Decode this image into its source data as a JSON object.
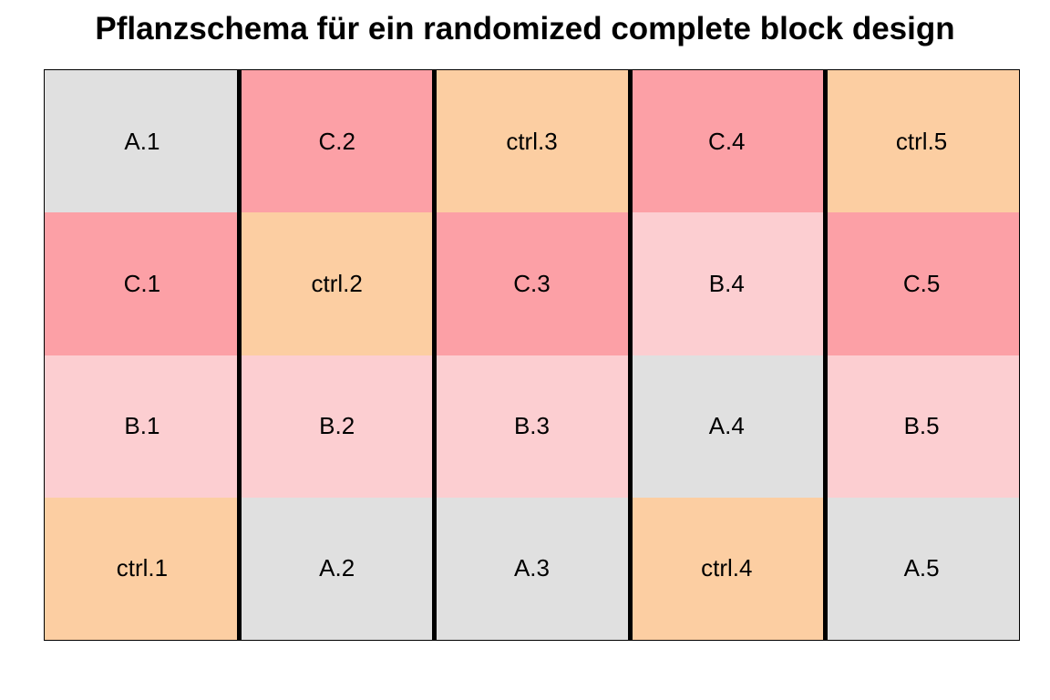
{
  "title": "Pflanzschema für ein randomized complete block design",
  "colors": {
    "A": "#e0e0e0",
    "B": "#fcced1",
    "C": "#fca0a6",
    "ctrl": "#fccea2",
    "divider": "#000000"
  },
  "rows": [
    [
      {
        "label": "A.1",
        "group": "A"
      },
      {
        "label": "C.2",
        "group": "C"
      },
      {
        "label": "ctrl.3",
        "group": "ctrl"
      },
      {
        "label": "C.4",
        "group": "C"
      },
      {
        "label": "ctrl.5",
        "group": "ctrl"
      }
    ],
    [
      {
        "label": "C.1",
        "group": "C"
      },
      {
        "label": "ctrl.2",
        "group": "ctrl"
      },
      {
        "label": "C.3",
        "group": "C"
      },
      {
        "label": "B.4",
        "group": "B"
      },
      {
        "label": "C.5",
        "group": "C"
      }
    ],
    [
      {
        "label": "B.1",
        "group": "B"
      },
      {
        "label": "B.2",
        "group": "B"
      },
      {
        "label": "B.3",
        "group": "B"
      },
      {
        "label": "A.4",
        "group": "A"
      },
      {
        "label": "B.5",
        "group": "B"
      }
    ],
    [
      {
        "label": "ctrl.1",
        "group": "ctrl"
      },
      {
        "label": "A.2",
        "group": "A"
      },
      {
        "label": "A.3",
        "group": "A"
      },
      {
        "label": "ctrl.4",
        "group": "ctrl"
      },
      {
        "label": "A.5",
        "group": "A"
      }
    ]
  ]
}
